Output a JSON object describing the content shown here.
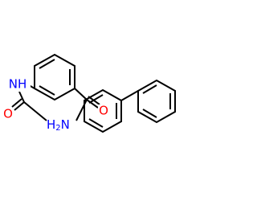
{
  "atoms": {
    "nh": "NH",
    "urea_o": "O",
    "amide_o": "O",
    "amine": {
      "h": "H",
      "sub": "2",
      "n": "N"
    }
  }
}
